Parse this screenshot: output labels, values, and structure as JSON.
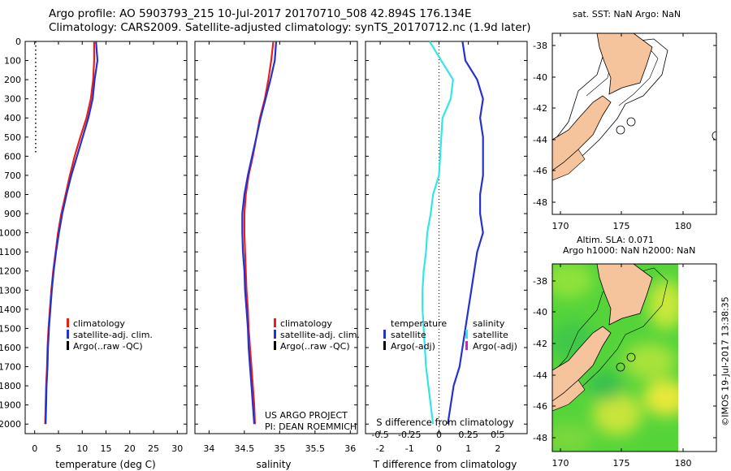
{
  "header": {
    "line1": "Argo profile: AO 5903793_215 10-Jul-2017 20170710_508 42.894S 176.134E",
    "line2": "Climatology: CARS2009. Satellite-adjusted climatology: synTS_20170712.nc (1.9d later)"
  },
  "colors": {
    "climatology": "#e8201c",
    "satellite": "#2432d0",
    "argo": "#000000",
    "satellite_salinity": "#33e6e6",
    "argo_salinity": "#d21fd2",
    "land": "#f5c49c"
  },
  "depth_axis": {
    "ticks": [
      0,
      100,
      200,
      300,
      400,
      500,
      600,
      700,
      800,
      900,
      1000,
      1100,
      1200,
      1300,
      1400,
      1500,
      1600,
      1700,
      1800,
      1900,
      2000
    ]
  },
  "legend": {
    "climatology": "climatology",
    "satellite_adj": "satellite-adj. clim.",
    "argo_raw": "Argo(..raw -QC)",
    "temperature_head": "temperature",
    "salinity_head": "salinity",
    "satellite": "satellite",
    "argo_adj": "Argo(-adj)"
  },
  "credits": {
    "project": "US ARGO PROJECT",
    "pi": "PI: DEAN ROEMMICH"
  },
  "maps": {
    "sst_title": "sat. SST: NaN Argo: NaN",
    "sla_title1": "Altim. SLA: 0.071",
    "sla_title2": "Argo h1000: NaN h2000: NaN",
    "lat_ticks": [
      "-38",
      "-40",
      "-42",
      "-44",
      "-46",
      "-48"
    ],
    "lon_ticks": [
      "170",
      "175",
      "180"
    ]
  },
  "footer": {
    "imos": "©IMOS 19-Jul-2017 13:38:35"
  },
  "chart_data": [
    {
      "type": "line",
      "title": "",
      "xlabel": "temperature (deg C)",
      "ylabel": "",
      "xlim": [
        -2,
        32
      ],
      "ylim": [
        0,
        2050
      ],
      "x_ticks": [
        0,
        5,
        10,
        15,
        20,
        25,
        30
      ],
      "y_reversed": true,
      "series": [
        {
          "name": "climatology",
          "color": "red",
          "x": [
            12.5,
            12.5,
            12.3,
            11.8,
            10.9,
            9.6,
            8.4,
            7.4,
            6.5,
            5.6,
            4.9,
            4.4,
            3.9,
            3.5,
            3.2,
            2.9,
            2.7,
            2.6,
            2.4,
            2.3,
            2.2
          ],
          "y": [
            0,
            100,
            200,
            300,
            400,
            500,
            600,
            700,
            800,
            900,
            1000,
            1100,
            1200,
            1300,
            1400,
            1500,
            1600,
            1700,
            1800,
            1900,
            2000
          ]
        },
        {
          "name": "satellite-adj. clim.",
          "color": "blue",
          "x": [
            12.9,
            13.2,
            12.6,
            12.2,
            11.3,
            10.1,
            8.9,
            7.7,
            6.7,
            5.8,
            5.1,
            4.5,
            4.0,
            3.6,
            3.3,
            3.0,
            2.8,
            2.7,
            2.5,
            2.4,
            2.3
          ],
          "y": [
            0,
            100,
            200,
            300,
            400,
            500,
            600,
            700,
            800,
            900,
            1000,
            1100,
            1200,
            1300,
            1400,
            1500,
            1600,
            1700,
            1800,
            1900,
            2000
          ]
        },
        {
          "name": "Argo(..raw -QC)",
          "color": "black",
          "style": "dotted",
          "x": [
            0.2,
            0.2,
            0.2,
            0.2,
            0.2,
            0.2,
            0.2
          ],
          "y": [
            0,
            100,
            200,
            300,
            400,
            500,
            580
          ]
        }
      ]
    },
    {
      "type": "line",
      "title": "",
      "xlabel": "salinity",
      "ylabel": "",
      "xlim": [
        33.8,
        36.1
      ],
      "ylim": [
        0,
        2050
      ],
      "x_ticks": [
        34,
        34.5,
        35,
        35.5,
        36
      ],
      "y_reversed": true,
      "series": [
        {
          "name": "climatology",
          "color": "red",
          "x": [
            34.91,
            34.88,
            34.84,
            34.79,
            34.72,
            34.67,
            34.62,
            34.56,
            34.52,
            34.5,
            34.5,
            34.51,
            34.52,
            34.53,
            34.55,
            34.56,
            34.58,
            34.6,
            34.62,
            34.64,
            34.65
          ],
          "y": [
            0,
            100,
            200,
            300,
            400,
            500,
            600,
            700,
            800,
            900,
            1000,
            1100,
            1200,
            1300,
            1400,
            1500,
            1600,
            1700,
            1800,
            1900,
            2000
          ]
        },
        {
          "name": "satellite-adj. clim.",
          "color": "blue",
          "x": [
            34.95,
            34.93,
            34.87,
            34.8,
            34.73,
            34.67,
            34.61,
            34.55,
            34.5,
            34.47,
            34.47,
            34.48,
            34.5,
            34.51,
            34.53,
            34.55,
            34.56,
            34.58,
            34.6,
            34.62,
            34.64
          ],
          "y": [
            0,
            100,
            200,
            300,
            400,
            500,
            600,
            700,
            800,
            900,
            1000,
            1100,
            1200,
            1300,
            1400,
            1500,
            1600,
            1700,
            1800,
            1900,
            2000
          ]
        }
      ]
    },
    {
      "type": "line",
      "title": "",
      "xlabel": "T difference from climatology",
      "top_label": "S difference from climatology",
      "ylabel": "",
      "xlim": [
        -2.5,
        3.0
      ],
      "x_ticks": [
        -2,
        -1,
        0,
        1,
        2
      ],
      "top_ticks": [
        "-0.5",
        "-0.25",
        "0",
        "0.25",
        "0.5"
      ],
      "top_tick_values": [
        -0.5,
        -0.25,
        0,
        0.25,
        0.5
      ],
      "s_scale": 4,
      "ylim": [
        0,
        2050
      ],
      "y_reversed": true,
      "series": [
        {
          "name": "temperature satellite",
          "color": "blue",
          "x": [
            0.8,
            0.9,
            1.3,
            1.5,
            1.4,
            1.5,
            1.5,
            1.5,
            1.4,
            1.4,
            1.5,
            1.3,
            1.2,
            1.1,
            1.0,
            0.9,
            0.8,
            0.7,
            0.5,
            0.4,
            0.3
          ],
          "y": [
            0,
            100,
            200,
            300,
            400,
            500,
            600,
            700,
            800,
            900,
            1000,
            1100,
            1200,
            1300,
            1400,
            1500,
            1600,
            1700,
            1800,
            1900,
            2000
          ]
        },
        {
          "name": "salinity satellite",
          "color": "cyan",
          "x": [
            -0.08,
            0.02,
            0.12,
            0.1,
            0.03,
            0.02,
            0.01,
            0.0,
            -0.05,
            -0.07,
            -0.1,
            -0.11,
            -0.13,
            -0.14,
            -0.14,
            -0.13,
            -0.12,
            -0.11,
            -0.09,
            -0.07,
            -0.05
          ],
          "y": [
            0,
            100,
            200,
            300,
            400,
            500,
            600,
            700,
            800,
            900,
            1000,
            1100,
            1200,
            1300,
            1400,
            1500,
            1600,
            1700,
            1800,
            1900,
            2000
          ]
        }
      ]
    }
  ]
}
